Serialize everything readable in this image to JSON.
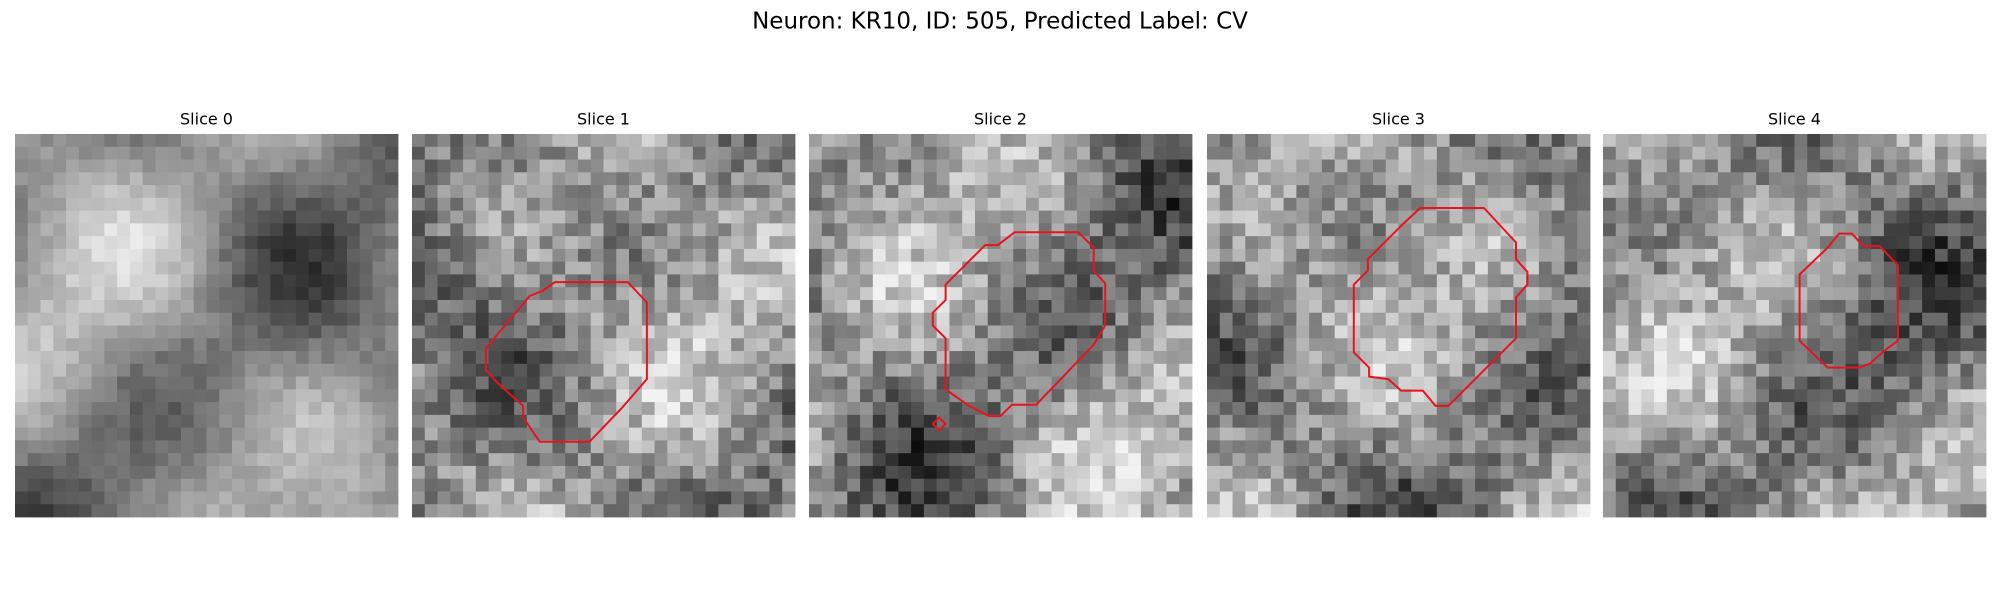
{
  "header": {
    "title": "Neuron: KR10, ID: 505, Predicted Label: CV"
  },
  "panels": [
    {
      "title": "Slice 0"
    },
    {
      "title": "Slice 1"
    },
    {
      "title": "Slice 2"
    },
    {
      "title": "Slice 3"
    },
    {
      "title": "Slice 4"
    }
  ]
}
